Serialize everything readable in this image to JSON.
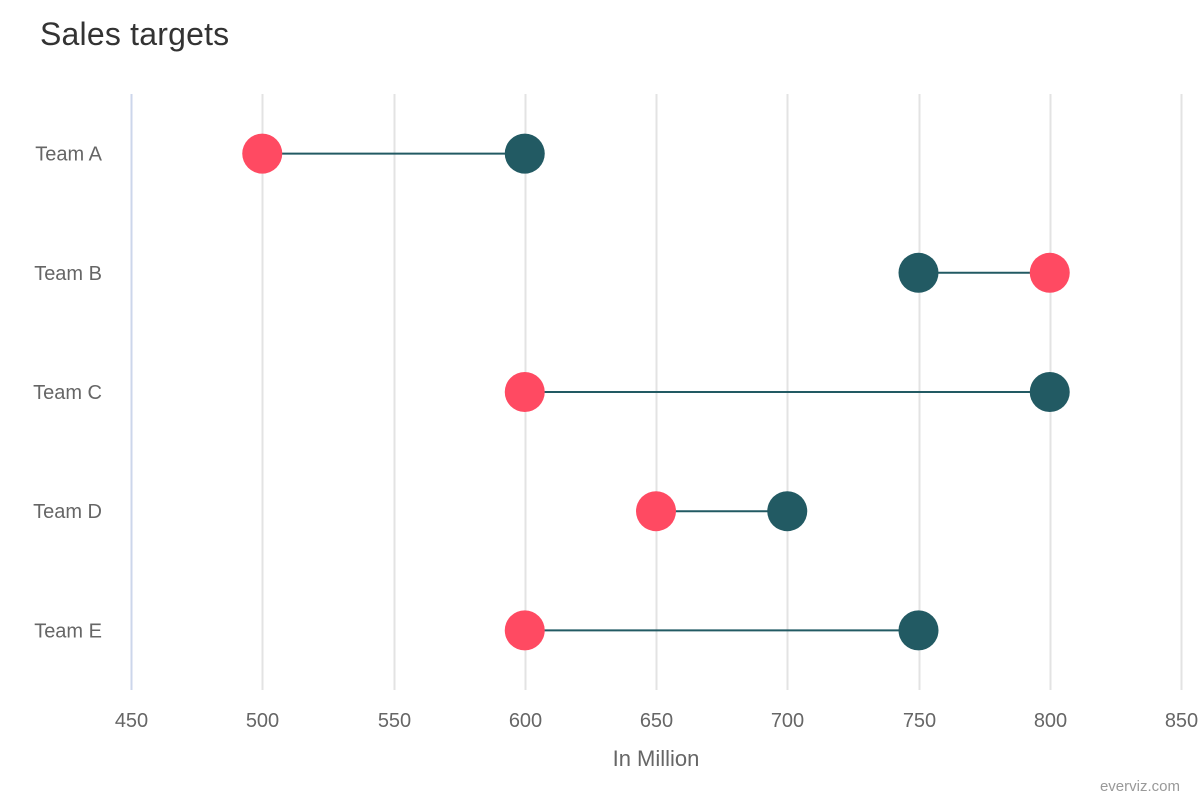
{
  "chart_data": {
    "type": "dumbbell",
    "title": "Sales targets",
    "xlabel": "In Million",
    "ylabel": "",
    "xlim": [
      450,
      850
    ],
    "x_ticks": [
      450,
      500,
      550,
      600,
      650,
      700,
      750,
      800,
      850
    ],
    "grid": true,
    "categories": [
      "Team A",
      "Team B",
      "Team C",
      "Team D",
      "Team E"
    ],
    "series": [
      {
        "color": "#ff4a62",
        "values": [
          500,
          800,
          600,
          650,
          600
        ]
      },
      {
        "color": "#225a63",
        "values": [
          600,
          750,
          800,
          700,
          750
        ]
      }
    ],
    "connector_color": "#225a63",
    "grid_color": "#e3e3e3",
    "axis_line_color": "#ccd6eb"
  },
  "credit": "everviz.com"
}
